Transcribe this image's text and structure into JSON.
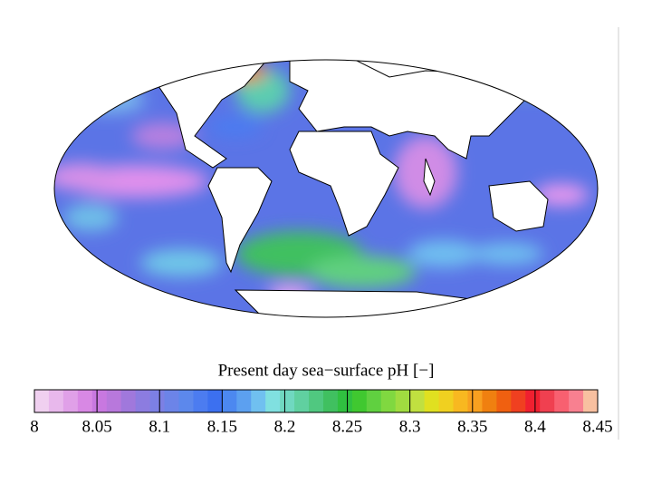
{
  "colorbar": {
    "label": "Present day sea−surface pH [−]",
    "lim": [
      8,
      8.45
    ],
    "ticks": [
      8,
      8.05,
      8.1,
      8.15,
      8.2,
      8.25,
      8.3,
      8.35,
      8.4,
      8.45
    ],
    "colors": [
      "#f0d0f0",
      "#e8b8ec",
      "#e0a0e8",
      "#d888e4",
      "#c878e0",
      "#b878dc",
      "#a078dc",
      "#8c7ce0",
      "#7c80e4",
      "#6c84e8",
      "#5c88ec",
      "#4c7cf0",
      "#3c70f0",
      "#4c88f0",
      "#5ca0f0",
      "#70c0f0",
      "#80e0e0",
      "#70d8c0",
      "#60d0a0",
      "#50c880",
      "#40c060",
      "#30c040",
      "#40c830",
      "#60d040",
      "#80d840",
      "#a0dc40",
      "#c0e040",
      "#e0e020",
      "#f0d020",
      "#f8b820",
      "#f8a020",
      "#f08010",
      "#f06010",
      "#f04020",
      "#f02030",
      "#f04050",
      "#f86070",
      "#f88090",
      "#f8c0a0"
    ]
  }
}
